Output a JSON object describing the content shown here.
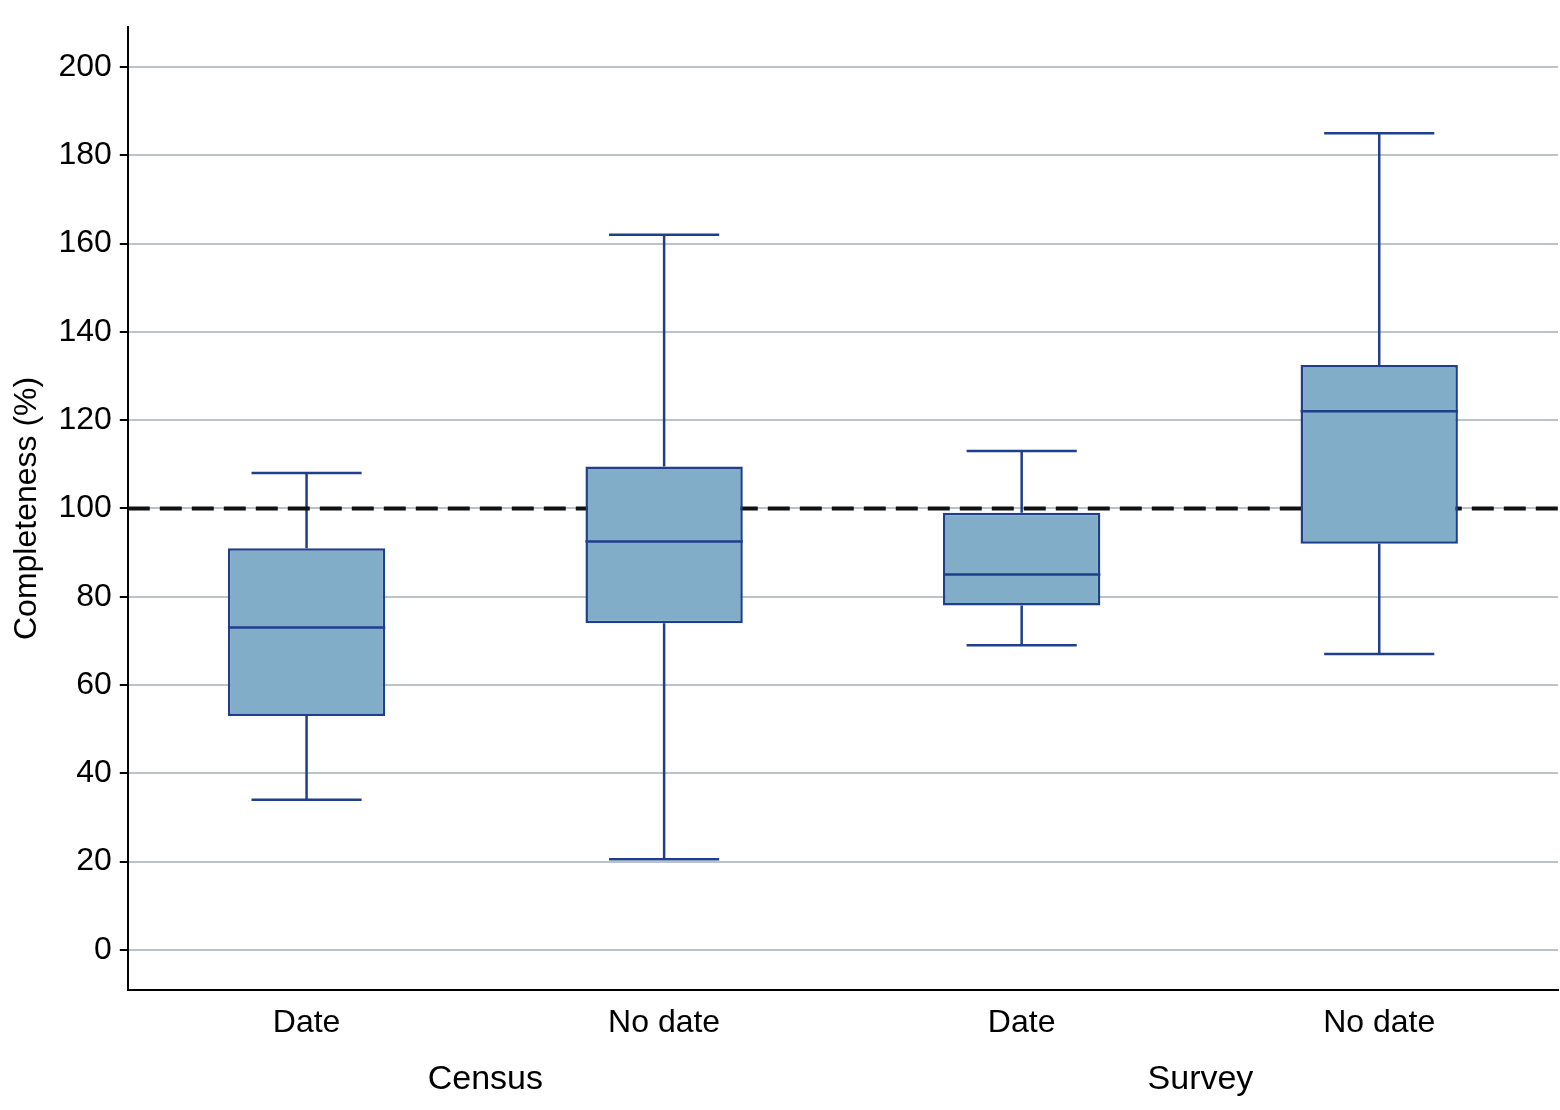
{
  "chart_data": {
    "type": "boxplot",
    "y_label": "Completeness (%)",
    "groups": [
      {
        "name": "Census",
        "categories": [
          "Date",
          "No date"
        ]
      },
      {
        "name": "Survey",
        "categories": [
          "Date",
          "No date"
        ]
      }
    ],
    "stats": [
      {
        "min": 34,
        "q1": 53,
        "median": 73,
        "q3": 91,
        "max": 108
      },
      {
        "min": 20.5,
        "q1": 74,
        "median": 92.5,
        "q3": 109.5,
        "max": 162
      },
      {
        "min": 69,
        "q1": 78,
        "median": 85,
        "q3": 99,
        "max": 113
      },
      {
        "min": 67,
        "q1": 92,
        "median": 122,
        "q3": 132.5,
        "max": 185
      }
    ],
    "color": "#82adc9",
    "edge_color": "#1f3f8c",
    "reference_line": {
      "value": 100,
      "line_style": "dashed"
    },
    "ylim": [
      -9,
      209
    ],
    "yticks": [
      0,
      20,
      40,
      60,
      80,
      100,
      120,
      140,
      160,
      180,
      200
    ],
    "grid": true
  }
}
